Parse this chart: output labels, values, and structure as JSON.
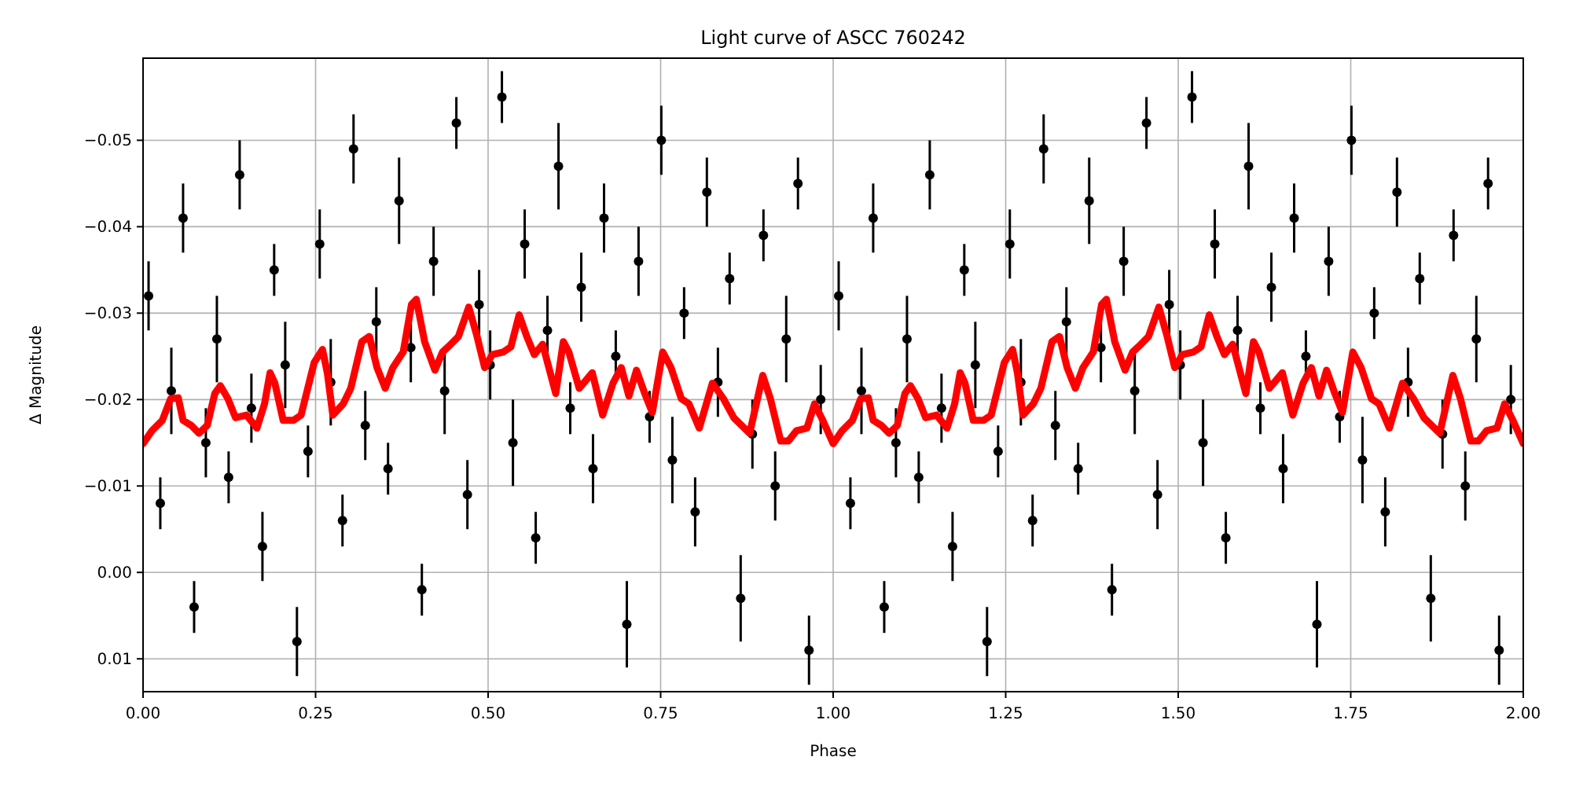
{
  "chart_data": {
    "type": "scatter",
    "title": "Light curve of ASCC 760242",
    "xlabel": "Phase",
    "ylabel": "Δ Magnitude",
    "xlim": [
      0,
      2
    ],
    "ylim": [
      0.0138,
      -0.0595
    ],
    "xticks": [
      {
        "value": 0,
        "label": "0.00"
      },
      {
        "value": 0.25,
        "label": "0.25"
      },
      {
        "value": 0.5,
        "label": "0.50"
      },
      {
        "value": 0.75,
        "label": "0.75"
      },
      {
        "value": 1,
        "label": "1.00"
      },
      {
        "value": 1.25,
        "label": "1.25"
      },
      {
        "value": 1.5,
        "label": "1.50"
      },
      {
        "value": 1.75,
        "label": "1.75"
      },
      {
        "value": 2,
        "label": "2.00"
      }
    ],
    "yticks": [
      {
        "value": 0.01,
        "label": "0.01"
      },
      {
        "value": 0,
        "label": "0.00"
      },
      {
        "value": -0.01,
        "label": "−0.01"
      },
      {
        "value": -0.02,
        "label": "−0.02"
      },
      {
        "value": -0.03,
        "label": "−0.03"
      },
      {
        "value": -0.04,
        "label": "−0.04"
      },
      {
        "value": -0.05,
        "label": "−0.05"
      }
    ],
    "grid": true,
    "series": [
      {
        "color": "#000000",
        "marker": "circle",
        "x": [
          0.008,
          0.025,
          0.041,
          0.058,
          0.074,
          0.091,
          0.107,
          0.124,
          0.14,
          0.157,
          0.173,
          0.19,
          0.206,
          0.223,
          0.239,
          0.256,
          0.272,
          0.289,
          0.305,
          0.322,
          0.338,
          0.355,
          0.371,
          0.388,
          0.404,
          0.421,
          0.437,
          0.454,
          0.47,
          0.487,
          0.503,
          0.52,
          0.536,
          0.553,
          0.569,
          0.586,
          0.602,
          0.619,
          0.635,
          0.652,
          0.668,
          0.685,
          0.701,
          0.718,
          0.734,
          0.751,
          0.767,
          0.784,
          0.8,
          0.817,
          0.833,
          0.85,
          0.866,
          0.883,
          0.899,
          0.916,
          0.932,
          0.949,
          0.965,
          0.982,
          1.008,
          1.025,
          1.041,
          1.058,
          1.074,
          1.091,
          1.107,
          1.124,
          1.14,
          1.157,
          1.173,
          1.19,
          1.206,
          1.223,
          1.239,
          1.256,
          1.272,
          1.289,
          1.305,
          1.322,
          1.338,
          1.355,
          1.371,
          1.388,
          1.404,
          1.421,
          1.437,
          1.454,
          1.47,
          1.487,
          1.503,
          1.52,
          1.536,
          1.553,
          1.569,
          1.586,
          1.602,
          1.619,
          1.635,
          1.652,
          1.668,
          1.685,
          1.701,
          1.718,
          1.734,
          1.751,
          1.767,
          1.784,
          1.8,
          1.817,
          1.833,
          1.85,
          1.866,
          1.883,
          1.899,
          1.916,
          1.932,
          1.949,
          1.965,
          1.982
        ],
        "values": [
          -0.032,
          -0.008,
          -0.021,
          -0.041,
          0.004,
          -0.015,
          -0.027,
          -0.011,
          -0.046,
          -0.019,
          -0.003,
          -0.035,
          -0.024,
          0.008,
          -0.014,
          -0.038,
          -0.022,
          -0.006,
          -0.049,
          -0.017,
          -0.029,
          -0.012,
          -0.043,
          -0.026,
          0.002,
          -0.036,
          -0.021,
          -0.052,
          -0.009,
          -0.031,
          -0.024,
          -0.055,
          -0.015,
          -0.038,
          -0.004,
          -0.028,
          -0.047,
          -0.019,
          -0.033,
          -0.012,
          -0.041,
          -0.025,
          0.006,
          -0.036,
          -0.018,
          -0.05,
          -0.013,
          -0.03,
          -0.007,
          -0.044,
          -0.022,
          -0.034,
          0.003,
          -0.016,
          -0.039,
          -0.01,
          -0.027,
          -0.045,
          0.009,
          -0.02,
          -0.032,
          -0.008,
          -0.021,
          -0.041,
          0.004,
          -0.015,
          -0.027,
          -0.011,
          -0.046,
          -0.019,
          -0.003,
          -0.035,
          -0.024,
          0.008,
          -0.014,
          -0.038,
          -0.022,
          -0.006,
          -0.049,
          -0.017,
          -0.029,
          -0.012,
          -0.043,
          -0.026,
          0.002,
          -0.036,
          -0.021,
          -0.052,
          -0.009,
          -0.031,
          -0.024,
          -0.055,
          -0.015,
          -0.038,
          -0.004,
          -0.028,
          -0.047,
          -0.019,
          -0.033,
          -0.012,
          -0.041,
          -0.025,
          0.006,
          -0.036,
          -0.018,
          -0.05,
          -0.013,
          -0.03,
          -0.007,
          -0.044,
          -0.022,
          -0.034,
          0.003,
          -0.016,
          -0.039,
          -0.01,
          -0.027,
          -0.045,
          0.009,
          -0.02
        ],
        "errors": [
          0.004,
          0.003,
          0.005,
          0.004,
          0.003,
          0.004,
          0.005,
          0.003,
          0.004,
          0.004,
          0.004,
          0.003,
          0.005,
          0.004,
          0.003,
          0.004,
          0.005,
          0.003,
          0.004,
          0.004,
          0.004,
          0.003,
          0.005,
          0.004,
          0.003,
          0.004,
          0.005,
          0.003,
          0.004,
          0.004,
          0.004,
          0.003,
          0.005,
          0.004,
          0.003,
          0.004,
          0.005,
          0.003,
          0.004,
          0.004,
          0.004,
          0.003,
          0.005,
          0.004,
          0.003,
          0.004,
          0.005,
          0.003,
          0.004,
          0.004,
          0.004,
          0.003,
          0.005,
          0.004,
          0.003,
          0.004,
          0.005,
          0.003,
          0.004,
          0.004,
          0.004,
          0.003,
          0.005,
          0.004,
          0.003,
          0.004,
          0.005,
          0.003,
          0.004,
          0.004,
          0.004,
          0.003,
          0.005,
          0.004,
          0.003,
          0.004,
          0.005,
          0.003,
          0.004,
          0.004,
          0.004,
          0.003,
          0.005,
          0.004,
          0.003,
          0.004,
          0.005,
          0.003,
          0.004,
          0.004,
          0.004,
          0.003,
          0.005,
          0.004,
          0.003,
          0.004,
          0.005,
          0.003,
          0.004,
          0.004,
          0.004,
          0.003,
          0.005,
          0.004,
          0.003,
          0.004,
          0.005,
          0.003,
          0.004,
          0.004,
          0.004,
          0.003,
          0.005,
          0.004,
          0.003,
          0.004,
          0.005,
          0.003,
          0.004,
          0.004
        ]
      },
      {
        "type": "line",
        "color": "#ff0000",
        "line_style": "solid",
        "x": [
          0,
          0.013,
          0.028,
          0.04,
          0.051,
          0.058,
          0.07,
          0.081,
          0.093,
          0.104,
          0.112,
          0.123,
          0.134,
          0.15,
          0.165,
          0.176,
          0.184,
          0.191,
          0.203,
          0.218,
          0.229,
          0.248,
          0.26,
          0.267,
          0.275,
          0.29,
          0.301,
          0.317,
          0.328,
          0.339,
          0.351,
          0.362,
          0.377,
          0.389,
          0.396,
          0.408,
          0.423,
          0.434,
          0.446,
          0.457,
          0.472,
          0.484,
          0.495,
          0.506,
          0.522,
          0.533,
          0.545,
          0.556,
          0.567,
          0.579,
          0.598,
          0.609,
          0.617,
          0.632,
          0.651,
          0.666,
          0.681,
          0.693,
          0.704,
          0.715,
          0.727,
          0.738,
          0.753,
          0.765,
          0.78,
          0.791,
          0.806,
          0.825,
          0.841,
          0.856,
          0.879,
          0.898,
          0.909,
          0.924,
          0.935,
          0.947,
          0.962,
          0.973,
          0.985,
          1,
          1.013,
          1.028,
          1.04,
          1.051,
          1.058,
          1.07,
          1.081,
          1.093,
          1.104,
          1.112,
          1.123,
          1.134,
          1.15,
          1.165,
          1.176,
          1.184,
          1.191,
          1.203,
          1.218,
          1.229,
          1.248,
          1.26,
          1.267,
          1.275,
          1.29,
          1.301,
          1.317,
          1.328,
          1.339,
          1.351,
          1.362,
          1.377,
          1.389,
          1.396,
          1.408,
          1.423,
          1.434,
          1.446,
          1.457,
          1.472,
          1.484,
          1.495,
          1.506,
          1.522,
          1.533,
          1.545,
          1.556,
          1.567,
          1.579,
          1.598,
          1.609,
          1.617,
          1.632,
          1.651,
          1.666,
          1.681,
          1.693,
          1.704,
          1.715,
          1.727,
          1.738,
          1.753,
          1.765,
          1.78,
          1.791,
          1.806,
          1.825,
          1.841,
          1.856,
          1.879,
          1.898,
          1.909,
          1.924,
          1.935,
          1.947,
          1.962,
          1.973,
          1.985,
          2
        ],
        "values": [
          -0.0149,
          -0.0164,
          -0.0176,
          -0.0201,
          -0.0202,
          -0.0176,
          -0.017,
          -0.0161,
          -0.017,
          -0.0207,
          -0.0216,
          -0.0201,
          -0.0179,
          -0.0182,
          -0.0167,
          -0.0195,
          -0.0231,
          -0.0219,
          -0.0176,
          -0.0176,
          -0.0182,
          -0.0243,
          -0.0258,
          -0.0231,
          -0.0182,
          -0.0195,
          -0.0213,
          -0.0267,
          -0.0273,
          -0.0237,
          -0.0213,
          -0.0237,
          -0.0255,
          -0.031,
          -0.0316,
          -0.0267,
          -0.0234,
          -0.0255,
          -0.0264,
          -0.0273,
          -0.0307,
          -0.0273,
          -0.0237,
          -0.0252,
          -0.0255,
          -0.0261,
          -0.0298,
          -0.0273,
          -0.0252,
          -0.0264,
          -0.0207,
          -0.0267,
          -0.0255,
          -0.0213,
          -0.0231,
          -0.0182,
          -0.0219,
          -0.0237,
          -0.0204,
          -0.0234,
          -0.0207,
          -0.0185,
          -0.0255,
          -0.0237,
          -0.0201,
          -0.0195,
          -0.0167,
          -0.0219,
          -0.0201,
          -0.0179,
          -0.0161,
          -0.0228,
          -0.0201,
          -0.0152,
          -0.0152,
          -0.0164,
          -0.0167,
          -0.0195,
          -0.0176,
          -0.0149,
          -0.0164,
          -0.0176,
          -0.0201,
          -0.0202,
          -0.0176,
          -0.017,
          -0.0161,
          -0.017,
          -0.0207,
          -0.0216,
          -0.0201,
          -0.0179,
          -0.0182,
          -0.0167,
          -0.0195,
          -0.0231,
          -0.0219,
          -0.0176,
          -0.0176,
          -0.0182,
          -0.0243,
          -0.0258,
          -0.0231,
          -0.0182,
          -0.0195,
          -0.0213,
          -0.0267,
          -0.0273,
          -0.0237,
          -0.0213,
          -0.0237,
          -0.0255,
          -0.031,
          -0.0316,
          -0.0267,
          -0.0234,
          -0.0255,
          -0.0264,
          -0.0273,
          -0.0307,
          -0.0273,
          -0.0237,
          -0.0252,
          -0.0255,
          -0.0261,
          -0.0298,
          -0.0273,
          -0.0252,
          -0.0264,
          -0.0207,
          -0.0267,
          -0.0255,
          -0.0213,
          -0.0231,
          -0.0182,
          -0.0219,
          -0.0237,
          -0.0204,
          -0.0234,
          -0.0207,
          -0.0185,
          -0.0255,
          -0.0237,
          -0.0201,
          -0.0195,
          -0.0167,
          -0.0219,
          -0.0201,
          -0.0179,
          -0.0161,
          -0.0228,
          -0.0201,
          -0.0152,
          -0.0152,
          -0.0164,
          -0.0167,
          -0.0195,
          -0.0176,
          -0.0149
        ]
      }
    ]
  }
}
